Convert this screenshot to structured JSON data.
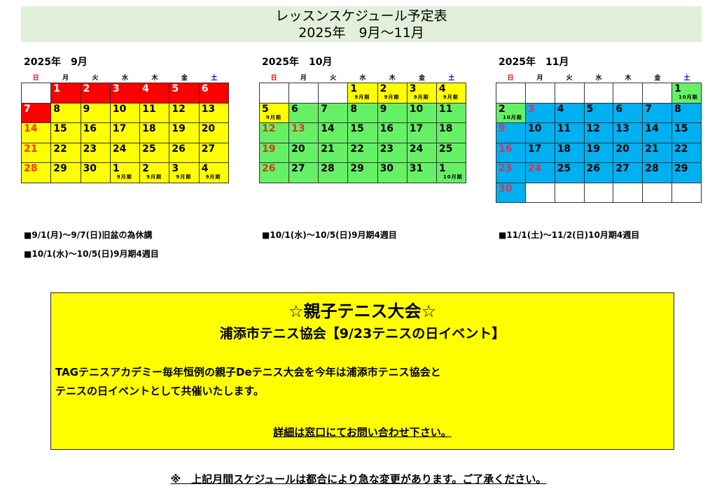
{
  "title": {
    "line1": "レッスンスケジュール予定表",
    "line2": "2025年　9月～11月"
  },
  "colors": {
    "red": "#ff0000",
    "yellow": "#ffff00",
    "green": "#66f066",
    "blue": "#00b0f0",
    "white": "#ffffff",
    "title_bg": "#e2efda",
    "sun": "#ff0000",
    "sat": "#0000cc"
  },
  "weekdays": [
    "日",
    "月",
    "火",
    "水",
    "木",
    "金",
    "土"
  ],
  "months": [
    {
      "title": "2025年　9月",
      "weeks": [
        [
          {
            "d": "",
            "bg": "white"
          },
          {
            "d": "1",
            "bg": "red",
            "c": "#fff"
          },
          {
            "d": "2",
            "bg": "red",
            "c": "#fff"
          },
          {
            "d": "3",
            "bg": "red",
            "c": "#fff"
          },
          {
            "d": "4",
            "bg": "red",
            "c": "#fff"
          },
          {
            "d": "5",
            "bg": "red",
            "c": "#fff"
          },
          {
            "d": "6",
            "bg": "red",
            "c": "#fff"
          }
        ],
        [
          {
            "d": "7",
            "bg": "red",
            "c": "#fff"
          },
          {
            "d": "8",
            "bg": "yellow"
          },
          {
            "d": "9",
            "bg": "yellow"
          },
          {
            "d": "10",
            "bg": "yellow"
          },
          {
            "d": "11",
            "bg": "yellow"
          },
          {
            "d": "12",
            "bg": "yellow"
          },
          {
            "d": "13",
            "bg": "yellow"
          }
        ],
        [
          {
            "d": "14",
            "bg": "yellow",
            "c": "#ff3300"
          },
          {
            "d": "15",
            "bg": "yellow"
          },
          {
            "d": "16",
            "bg": "yellow"
          },
          {
            "d": "17",
            "bg": "yellow"
          },
          {
            "d": "18",
            "bg": "yellow"
          },
          {
            "d": "19",
            "bg": "yellow"
          },
          {
            "d": "20",
            "bg": "yellow"
          }
        ],
        [
          {
            "d": "21",
            "bg": "yellow",
            "c": "#ff3300"
          },
          {
            "d": "22",
            "bg": "yellow"
          },
          {
            "d": "23",
            "bg": "yellow"
          },
          {
            "d": "24",
            "bg": "yellow"
          },
          {
            "d": "25",
            "bg": "yellow"
          },
          {
            "d": "26",
            "bg": "yellow"
          },
          {
            "d": "27",
            "bg": "yellow"
          }
        ],
        [
          {
            "d": "28",
            "bg": "yellow",
            "c": "#ff3300"
          },
          {
            "d": "29",
            "bg": "yellow"
          },
          {
            "d": "30",
            "bg": "yellow"
          },
          {
            "d": "1",
            "bg": "yellow",
            "n": "9月期"
          },
          {
            "d": "2",
            "bg": "yellow",
            "n": "9月期"
          },
          {
            "d": "3",
            "bg": "yellow",
            "n": "9月期"
          },
          {
            "d": "4",
            "bg": "yellow",
            "n": "9月期"
          }
        ]
      ]
    },
    {
      "title": "2025年　10月",
      "weeks": [
        [
          {
            "d": "",
            "bg": "white"
          },
          {
            "d": "",
            "bg": "white"
          },
          {
            "d": "",
            "bg": "white"
          },
          {
            "d": "1",
            "bg": "yellow",
            "n": "9月期"
          },
          {
            "d": "2",
            "bg": "yellow",
            "n": "9月期"
          },
          {
            "d": "3",
            "bg": "yellow",
            "n": "9月期"
          },
          {
            "d": "4",
            "bg": "yellow",
            "n": "9月期"
          }
        ],
        [
          {
            "d": "5",
            "bg": "yellow",
            "n": "9月期"
          },
          {
            "d": "6",
            "bg": "green"
          },
          {
            "d": "7",
            "bg": "green"
          },
          {
            "d": "8",
            "bg": "green"
          },
          {
            "d": "9",
            "bg": "green"
          },
          {
            "d": "10",
            "bg": "green"
          },
          {
            "d": "11",
            "bg": "green"
          }
        ],
        [
          {
            "d": "12",
            "bg": "green",
            "c": "#d63a1a"
          },
          {
            "d": "13",
            "bg": "green",
            "c": "#d63a1a"
          },
          {
            "d": "14",
            "bg": "green"
          },
          {
            "d": "15",
            "bg": "green"
          },
          {
            "d": "16",
            "bg": "green"
          },
          {
            "d": "17",
            "bg": "green"
          },
          {
            "d": "18",
            "bg": "green"
          }
        ],
        [
          {
            "d": "19",
            "bg": "green",
            "c": "#d63a1a"
          },
          {
            "d": "20",
            "bg": "green"
          },
          {
            "d": "21",
            "bg": "green"
          },
          {
            "d": "22",
            "bg": "green"
          },
          {
            "d": "23",
            "bg": "green"
          },
          {
            "d": "24",
            "bg": "green"
          },
          {
            "d": "25",
            "bg": "green"
          }
        ],
        [
          {
            "d": "26",
            "bg": "green",
            "c": "#d63a1a"
          },
          {
            "d": "27",
            "bg": "green"
          },
          {
            "d": "28",
            "bg": "green"
          },
          {
            "d": "29",
            "bg": "green"
          },
          {
            "d": "30",
            "bg": "green"
          },
          {
            "d": "31",
            "bg": "green"
          },
          {
            "d": "1",
            "bg": "green",
            "n": "10月期"
          }
        ]
      ]
    },
    {
      "title": "2025年　11月",
      "weeks": [
        [
          {
            "d": "",
            "bg": "white"
          },
          {
            "d": "",
            "bg": "white"
          },
          {
            "d": "",
            "bg": "white"
          },
          {
            "d": "",
            "bg": "white"
          },
          {
            "d": "",
            "bg": "white"
          },
          {
            "d": "",
            "bg": "white"
          },
          {
            "d": "1",
            "bg": "green",
            "n": "10月期"
          }
        ],
        [
          {
            "d": "2",
            "bg": "green",
            "n": "10月期"
          },
          {
            "d": "3",
            "bg": "blue",
            "c": "#d8315b"
          },
          {
            "d": "4",
            "bg": "blue"
          },
          {
            "d": "5",
            "bg": "blue"
          },
          {
            "d": "6",
            "bg": "blue"
          },
          {
            "d": "7",
            "bg": "blue"
          },
          {
            "d": "8",
            "bg": "blue"
          }
        ],
        [
          {
            "d": "9",
            "bg": "blue",
            "c": "#d8315b"
          },
          {
            "d": "10",
            "bg": "blue"
          },
          {
            "d": "11",
            "bg": "blue"
          },
          {
            "d": "12",
            "bg": "blue"
          },
          {
            "d": "13",
            "bg": "blue"
          },
          {
            "d": "14",
            "bg": "blue"
          },
          {
            "d": "15",
            "bg": "blue"
          }
        ],
        [
          {
            "d": "16",
            "bg": "blue",
            "c": "#d8315b"
          },
          {
            "d": "17",
            "bg": "blue"
          },
          {
            "d": "18",
            "bg": "blue"
          },
          {
            "d": "19",
            "bg": "blue"
          },
          {
            "d": "20",
            "bg": "blue"
          },
          {
            "d": "21",
            "bg": "blue"
          },
          {
            "d": "22",
            "bg": "blue"
          }
        ],
        [
          {
            "d": "23",
            "bg": "blue",
            "c": "#d8315b"
          },
          {
            "d": "24",
            "bg": "blue",
            "c": "#d8315b"
          },
          {
            "d": "25",
            "bg": "blue"
          },
          {
            "d": "26",
            "bg": "blue"
          },
          {
            "d": "27",
            "bg": "blue"
          },
          {
            "d": "28",
            "bg": "blue"
          },
          {
            "d": "29",
            "bg": "blue"
          }
        ],
        [
          {
            "d": "30",
            "bg": "blue",
            "c": "#d8315b"
          },
          {
            "d": "",
            "bg": "white"
          },
          {
            "d": "",
            "bg": "white"
          },
          {
            "d": "",
            "bg": "white"
          },
          {
            "d": "",
            "bg": "white"
          },
          {
            "d": "",
            "bg": "white"
          },
          {
            "d": "",
            "bg": "white"
          }
        ]
      ]
    }
  ],
  "notes": {
    "sep": [
      "■9/1(月)～9/7(日)旧盆の為休講",
      "■10/1(水)～10/5(日)9月期4週目"
    ],
    "oct": [
      "■10/1(水)～10/5(日)9月期4週目"
    ],
    "nov": [
      "■11/1(土)～11/2(日)10月期4週目"
    ]
  },
  "event": {
    "heading": "☆親子テニス大会☆",
    "subheading": "浦添市テニス協会【9/23テニスの日イベント】",
    "body1": "TAGテニスアカデミー毎年恒例の親子Deテニス大会を今年は浦添市テニス協会と",
    "body2": "テニスの日イベントとして共催いたします。",
    "contact": "詳細は窓口にてお問い合わせ下さい。"
  },
  "footer": "※　上記月間スケジュールは都合により急な変更があります。ご了承ください。"
}
